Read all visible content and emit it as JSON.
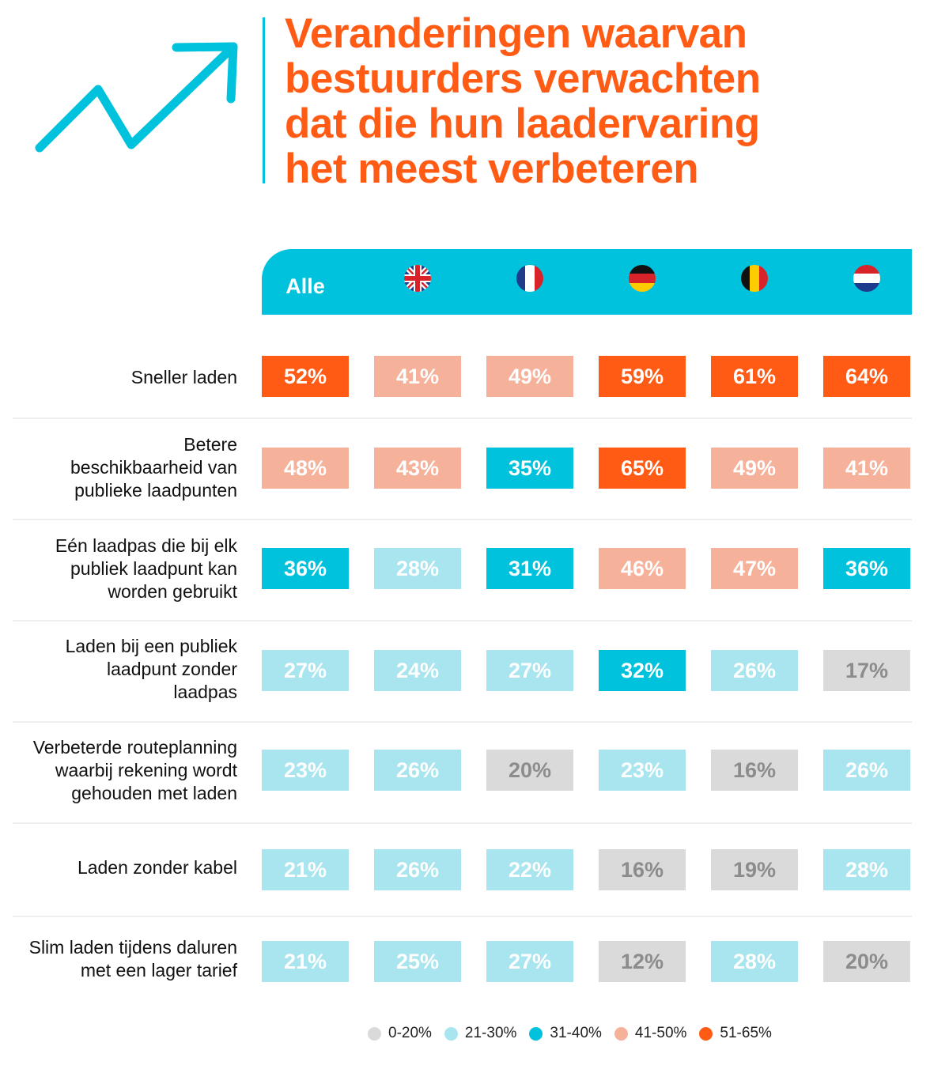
{
  "title_lines": [
    "Veranderingen waarvan",
    "bestuurders verwachten",
    "dat die hun laadervaring",
    "het meest verbeteren"
  ],
  "colors": {
    "accent_orange": "#ff5b14",
    "accent_cyan": "#00c2dc",
    "bin_0_20": "#dadada",
    "bin_21_30": "#a9e5ef",
    "bin_31_40": "#00c2dc",
    "bin_41_50": "#f6b19a",
    "bin_51_65": "#ff5b14"
  },
  "header": {
    "columns": [
      {
        "label": "Alle",
        "icon": "all-label"
      },
      {
        "label": "",
        "icon": "flag-uk-icon"
      },
      {
        "label": "",
        "icon": "flag-france-icon"
      },
      {
        "label": "",
        "icon": "flag-germany-icon"
      },
      {
        "label": "",
        "icon": "flag-belgium-icon"
      },
      {
        "label": "",
        "icon": "flag-netherlands-icon"
      }
    ]
  },
  "chart_data": {
    "type": "table",
    "rows": [
      {
        "label_lines": [
          "Sneller laden"
        ],
        "values": [
          52,
          41,
          49,
          59,
          61,
          64
        ],
        "labels": [
          "52%",
          "41%",
          "49%",
          "59%",
          "61%",
          "64%"
        ]
      },
      {
        "label_lines": [
          "Betere",
          "beschikbaarheid van",
          "publieke laadpunten"
        ],
        "values": [
          48,
          43,
          35,
          65,
          49,
          41
        ],
        "labels": [
          "48%",
          "43%",
          "35%",
          "65%",
          "49%",
          "41%"
        ]
      },
      {
        "label_lines": [
          "Eén laadpas die bij elk",
          "publiek laadpunt kan",
          "worden gebruikt"
        ],
        "values": [
          36,
          28,
          31,
          46,
          47,
          36
        ],
        "labels": [
          "36%",
          "28%",
          "31%",
          "46%",
          "47%",
          "36%"
        ]
      },
      {
        "label_lines": [
          "Laden bij een publiek",
          "laadpunt zonder",
          "laadpas"
        ],
        "values": [
          27,
          24,
          27,
          32,
          26,
          17
        ],
        "labels": [
          "27%",
          "24%",
          "27%",
          "32%",
          "26%",
          "17%"
        ]
      },
      {
        "label_lines": [
          "Verbeterde routeplanning",
          "waarbij rekening wordt",
          "gehouden met laden"
        ],
        "values": [
          23,
          26,
          20,
          23,
          16,
          26
        ],
        "labels": [
          "23%",
          "26%",
          "20%",
          "23%",
          "16%",
          "26%"
        ]
      },
      {
        "label_lines": [
          "Laden zonder kabel"
        ],
        "values": [
          21,
          26,
          22,
          16,
          19,
          28
        ],
        "labels": [
          "21%",
          "26%",
          "22%",
          "16%",
          "19%",
          "28%"
        ]
      },
      {
        "label_lines": [
          "Slim laden tijdens daluren",
          "met een lager tarief"
        ],
        "values": [
          21,
          25,
          27,
          12,
          28,
          20
        ],
        "labels": [
          "21%",
          "25%",
          "27%",
          "12%",
          "28%",
          "20%"
        ]
      }
    ],
    "legend": [
      {
        "label": "0-20%",
        "min": 0,
        "max": 20,
        "color": "#dadada"
      },
      {
        "label": "21-30%",
        "min": 21,
        "max": 30,
        "color": "#a9e5ef"
      },
      {
        "label": "31-40%",
        "min": 31,
        "max": 40,
        "color": "#00c2dc"
      },
      {
        "label": "41-50%",
        "min": 41,
        "max": 50,
        "color": "#f6b19a"
      },
      {
        "label": "51-65%",
        "min": 51,
        "max": 65,
        "color": "#ff5b14"
      }
    ]
  }
}
